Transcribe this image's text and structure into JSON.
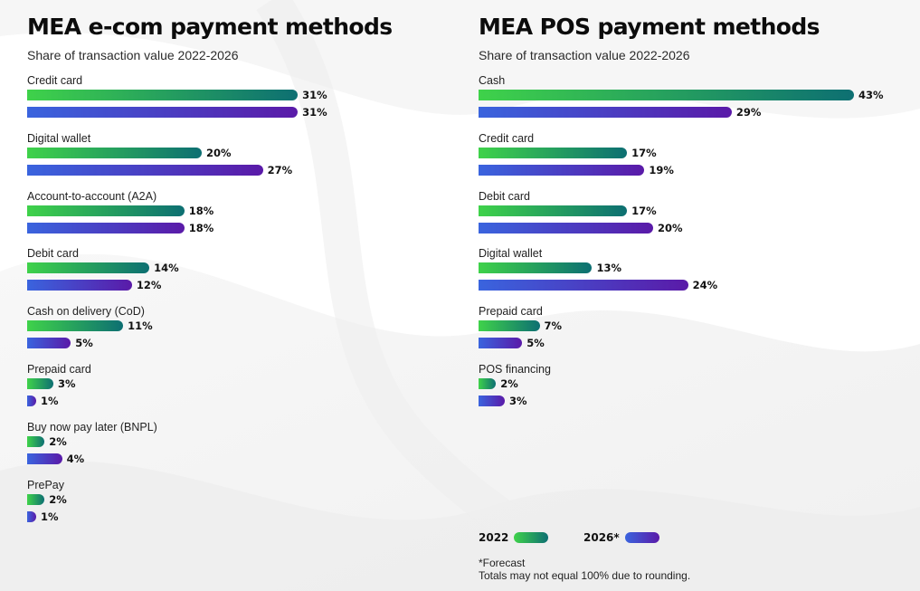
{
  "chart_data": [
    {
      "type": "bar",
      "orientation": "horizontal",
      "title": "MEA e-com payment methods",
      "subtitle": "Share of transaction value 2022-2026",
      "unit": "%",
      "xlim": [
        0,
        43
      ],
      "categories": [
        "Credit card",
        "Digital wallet",
        "Account-to-account (A2A)",
        "Debit card",
        "Cash on delivery (CoD)",
        "Prepaid card",
        "Buy now pay later (BNPL)",
        "PrePay"
      ],
      "series": [
        {
          "name": "2022",
          "values": [
            31,
            20,
            18,
            14,
            11,
            3,
            2,
            2
          ]
        },
        {
          "name": "2026*",
          "values": [
            31,
            27,
            18,
            12,
            5,
            1,
            4,
            1
          ]
        }
      ]
    },
    {
      "type": "bar",
      "orientation": "horizontal",
      "title": "MEA POS payment methods",
      "subtitle": "Share of transaction value 2022-2026",
      "unit": "%",
      "xlim": [
        0,
        43
      ],
      "categories": [
        "Cash",
        "Credit card",
        "Debit card",
        "Digital wallet",
        "Prepaid card",
        "POS financing"
      ],
      "series": [
        {
          "name": "2022",
          "values": [
            43,
            17,
            17,
            13,
            7,
            2
          ]
        },
        {
          "name": "2026*",
          "values": [
            29,
            19,
            20,
            24,
            5,
            3
          ]
        }
      ]
    }
  ],
  "legend": {
    "y2022": "2022",
    "y2026": "2026*"
  },
  "notes": {
    "forecast": "*Forecast",
    "rounding": "Totals may not equal 100% due to rounding."
  },
  "colors": {
    "bar_2022_start": "#3fd24a",
    "bar_2022_end": "#0d6f72",
    "bar_2026_start": "#3a64de",
    "bar_2026_end": "#5a1aa8"
  }
}
